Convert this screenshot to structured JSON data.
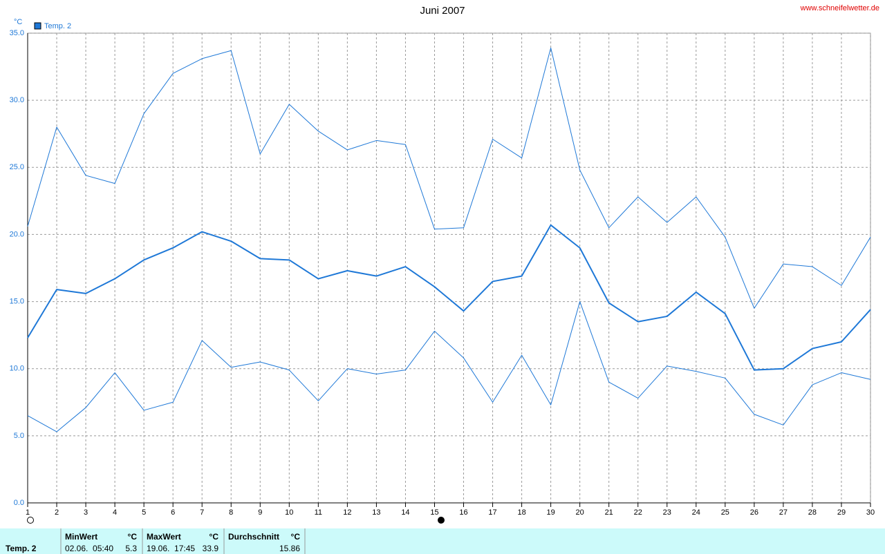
{
  "chart_data": {
    "type": "line",
    "title": "Juni 2007",
    "source": "www.schneifelwetter.de",
    "y_unit": "°C",
    "legend": "Temp. 2",
    "x": [
      1,
      2,
      3,
      4,
      5,
      6,
      7,
      8,
      9,
      10,
      11,
      12,
      13,
      14,
      15,
      16,
      17,
      18,
      19,
      20,
      21,
      22,
      23,
      24,
      25,
      26,
      27,
      28,
      29,
      30
    ],
    "xlim": [
      1,
      30
    ],
    "xticks": [
      1,
      2,
      3,
      4,
      5,
      6,
      7,
      8,
      9,
      10,
      11,
      12,
      13,
      14,
      15,
      16,
      17,
      18,
      19,
      20,
      21,
      22,
      23,
      24,
      25,
      26,
      27,
      28,
      29,
      30
    ],
    "ylim": [
      0,
      35
    ],
    "yticks": [
      {
        "value": 0,
        "label": "0.0"
      },
      {
        "value": 5,
        "label": "5.0"
      },
      {
        "value": 10,
        "label": "10.0"
      },
      {
        "value": 15,
        "label": "15.0"
      },
      {
        "value": 20,
        "label": "20.0"
      },
      {
        "value": 25,
        "label": "25.0"
      },
      {
        "value": 30,
        "label": "30.0"
      },
      {
        "value": 35,
        "label": "35.0"
      }
    ],
    "grid": true,
    "series": [
      {
        "color": "#1e78d7",
        "line_width": 1,
        "values": [
          20.6,
          28.0,
          24.4,
          23.8,
          29.0,
          32.0,
          33.1,
          33.7,
          26.0,
          29.7,
          27.7,
          26.3,
          27.0,
          26.7,
          20.4,
          20.5,
          27.1,
          25.7,
          33.9,
          24.8,
          20.5,
          22.8,
          20.9,
          22.8,
          19.8,
          14.5,
          17.8,
          17.6,
          16.2,
          19.8
        ]
      },
      {
        "color": "#1e78d7",
        "line_width": 2,
        "values": [
          12.3,
          15.9,
          15.6,
          16.7,
          18.1,
          19.0,
          20.2,
          19.5,
          18.2,
          18.1,
          16.7,
          17.3,
          16.9,
          17.6,
          16.1,
          14.3,
          16.5,
          16.9,
          20.7,
          19.0,
          14.9,
          13.5,
          13.9,
          15.7,
          14.1,
          9.9,
          10.0,
          11.5,
          12.0,
          14.4
        ]
      },
      {
        "color": "#1e78d7",
        "line_width": 1,
        "values": [
          6.5,
          5.3,
          7.1,
          9.7,
          6.9,
          7.5,
          12.1,
          10.1,
          10.5,
          9.9,
          7.6,
          10.0,
          9.6,
          9.9,
          12.8,
          10.8,
          7.5,
          11.0,
          7.3,
          15.0,
          9.0,
          7.8,
          10.2,
          9.8,
          9.3,
          6.6,
          5.8,
          8.8,
          9.7,
          9.2
        ]
      }
    ]
  },
  "summary": {
    "row_label": "Temp. 2",
    "columns": [
      {
        "title": "MinWert",
        "unit": "°C",
        "time": "02.06.  05:40",
        "value": 5.3
      },
      {
        "title": "MaxWert",
        "unit": "°C",
        "time": "19.06.  17:45",
        "value": 33.9
      },
      {
        "title": "Durchschnitt",
        "unit": "°C",
        "value": 15.86
      }
    ]
  }
}
